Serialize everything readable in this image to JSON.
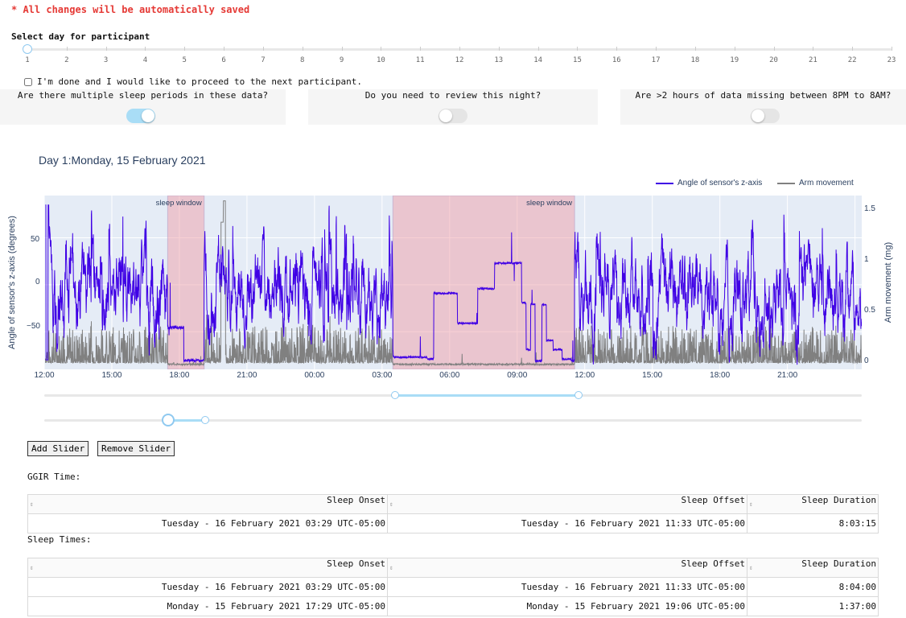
{
  "notice": "* All changes will be automatically saved",
  "day_selector": {
    "label": "Select day for participant",
    "days": [
      "1",
      "2",
      "3",
      "4",
      "5",
      "6",
      "7",
      "8",
      "9",
      "10",
      "11",
      "12",
      "13",
      "14",
      "15",
      "16",
      "17",
      "18",
      "19",
      "20",
      "21",
      "22",
      "23"
    ],
    "selected": "1"
  },
  "done_checkbox": {
    "label": "I'm done and I would like to proceed to the next participant.",
    "checked": false
  },
  "questions": [
    {
      "text": "Are there multiple sleep periods in these data?",
      "on": true
    },
    {
      "text": "Do you need to review this night?",
      "on": false
    },
    {
      "text": "Are >2 hours of data missing between 8PM to 8AM?",
      "on": false
    }
  ],
  "day_title": "Day 1:Monday, 15 February 2021",
  "chart_data": {
    "type": "line",
    "ylabel": "Angle of sensor's z-axis (degrees)",
    "y2label": "Arm movement (mg)",
    "yticks": [
      "50",
      "0",
      "−50"
    ],
    "y2ticks": [
      "1.5",
      "1",
      "0.5",
      "0"
    ],
    "xticks": [
      "12:00",
      "15:00",
      "18:00",
      "21:00",
      "00:00",
      "03:00",
      "06:00",
      "09:00",
      "12:00",
      "15:00",
      "18:00",
      "21:00"
    ],
    "series": [
      {
        "name": "Angle of sensor's z-axis",
        "color": "#3f00e5"
      },
      {
        "name": "Arm movement",
        "color": "#808080"
      }
    ],
    "x_range_hours": [
      12.0,
      48.3
    ],
    "sleep_windows": [
      {
        "label": "sleep window",
        "start_hour": 17.48,
        "end_hour": 19.1
      },
      {
        "label": "sleep window",
        "start_hour": 27.48,
        "end_hour": 35.55
      }
    ],
    "angle_ylim": [
      -90,
      95
    ],
    "movement_ylim": [
      -0.03,
      1.6
    ]
  },
  "buttons": {
    "add": "Add Slider",
    "remove": "Remove Slider"
  },
  "ggir": {
    "label": "GGIR Time:",
    "headers": [
      "Sleep Onset",
      "Sleep Offset",
      "Sleep Duration"
    ],
    "rows": [
      [
        "Tuesday - 16 February 2021 03:29 UTC-05:00",
        "Tuesday - 16 February 2021 11:33 UTC-05:00",
        "8:03:15"
      ]
    ]
  },
  "sleep_times": {
    "label": "Sleep Times:",
    "headers": [
      "Sleep Onset",
      "Sleep Offset",
      "Sleep Duration"
    ],
    "rows": [
      [
        "Tuesday - 16 February 2021 03:29 UTC-05:00",
        "Tuesday - 16 February 2021 11:33 UTC-05:00",
        "8:04:00"
      ],
      [
        "Monday - 15 February 2021 17:29 UTC-05:00",
        "Monday - 15 February 2021 19:06 UTC-05:00",
        "1:37:00"
      ]
    ]
  }
}
